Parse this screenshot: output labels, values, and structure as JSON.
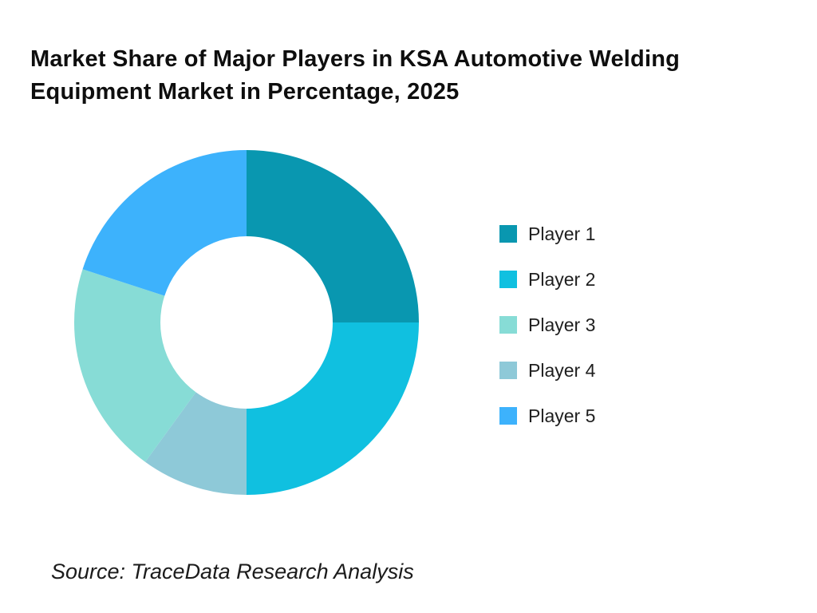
{
  "header": {
    "title_lines": [
      "Market Share of Major Players in KSA Automotive Welding",
      "Equipment Market in Percentage, 2025"
    ]
  },
  "footer": {
    "source": "Source: TraceData Research Analysis"
  },
  "chart_data": {
    "type": "pie",
    "subtype": "donut",
    "title": "Market Share of Major Players in KSA Automotive Welding Equipment Market in Percentage, 2025",
    "unit": "percent",
    "values_by_player": {
      "Player 1": 25,
      "Player 2": 25,
      "Player 3": 20,
      "Player 4": 10,
      "Player 5": 20
    },
    "slices_clockwise_from_top": [
      {
        "label": "Player 1",
        "value": 25,
        "color": "#0997B0"
      },
      {
        "label": "Player 2",
        "value": 25,
        "color": "#10C0E0"
      },
      {
        "label": "Player 4",
        "value": 10,
        "color": "#8EC9D8"
      },
      {
        "label": "Player 3",
        "value": 20,
        "color": "#87DCD6"
      },
      {
        "label": "Player 5",
        "value": 20,
        "color": "#3DB2FC"
      }
    ],
    "legend": {
      "position": "right",
      "items": [
        "Player 1",
        "Player 2",
        "Player 3",
        "Player 4",
        "Player 5"
      ]
    },
    "geometry": {
      "start_angle_deg": 0,
      "clockwise": true,
      "donut_hole_ratio": 0.5
    }
  }
}
